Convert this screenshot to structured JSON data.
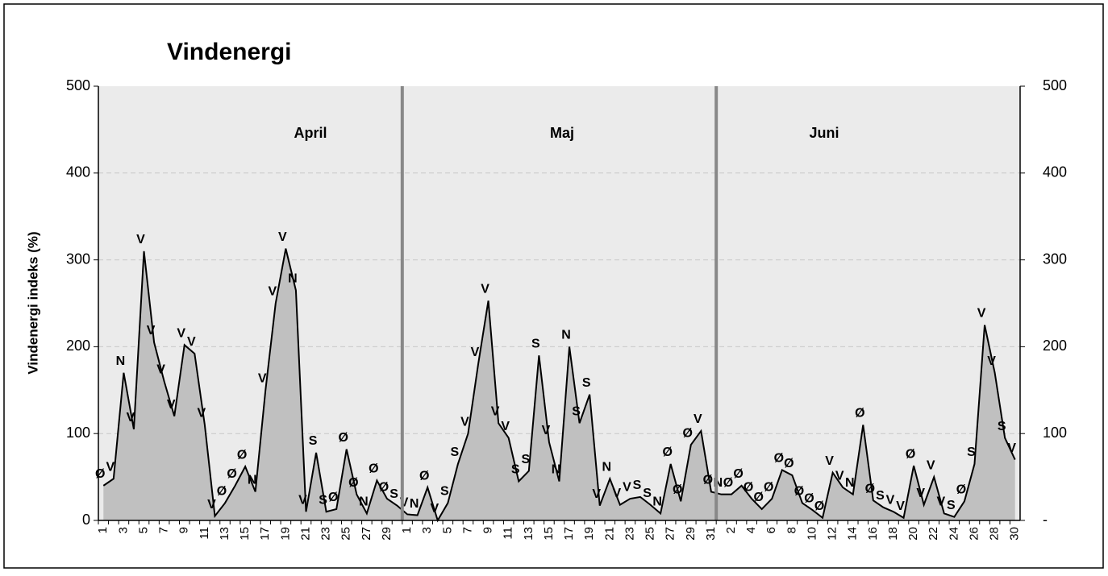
{
  "chart_data": {
    "type": "area",
    "title": "Vindenergi",
    "y_label": "Vindenergi indeks (%)",
    "months": [
      "April",
      "Maj",
      "Juni"
    ],
    "categories": [
      "1",
      null,
      "3",
      null,
      "5",
      null,
      "7",
      null,
      "9",
      null,
      "11",
      null,
      "13",
      null,
      "15",
      null,
      "17",
      null,
      "19",
      null,
      "21",
      null,
      "23",
      null,
      "25",
      null,
      "27",
      null,
      "29",
      null,
      "1",
      null,
      "3",
      null,
      "5",
      null,
      "7",
      null,
      "9",
      null,
      "11",
      null,
      "13",
      null,
      "15",
      null,
      "17",
      null,
      "19",
      null,
      "21",
      null,
      "23",
      null,
      "25",
      null,
      "27",
      null,
      "29",
      null,
      "31",
      null,
      "2",
      null,
      "4",
      null,
      "6",
      null,
      "8",
      null,
      "10",
      null,
      "12",
      null,
      "14",
      null,
      "16",
      null,
      "18",
      null,
      "20",
      null,
      "22",
      null,
      "24",
      null,
      "26",
      null,
      "28",
      null,
      "30"
    ],
    "series": [
      {
        "name": "Vindenergi",
        "color": "#c0c0c0",
        "values": [
          40,
          48,
          170,
          105,
          310,
          205,
          160,
          120,
          202,
          192,
          110,
          5,
          20,
          40,
          62,
          33,
          150,
          250,
          313,
          265,
          10,
          78,
          10,
          13,
          82,
          30,
          8,
          46,
          25,
          17,
          7,
          6,
          38,
          0,
          20,
          65,
          100,
          180,
          253,
          112,
          95,
          45,
          57,
          190,
          90,
          45,
          200,
          112,
          145,
          17,
          48,
          18,
          25,
          27,
          18,
          8,
          65,
          22,
          87,
          103,
          33,
          30,
          30,
          40,
          25,
          13,
          25,
          58,
          52,
          20,
          12,
          3,
          55,
          38,
          30,
          110,
          23,
          15,
          10,
          3,
          63,
          18,
          50,
          8,
          4,
          22,
          65,
          225,
          170,
          95,
          70
        ],
        "directions": [
          "Ø",
          "V",
          "N",
          "V",
          "V",
          "V",
          "V",
          "V",
          "V",
          "V",
          "V",
          "V",
          "Ø",
          "Ø",
          "Ø",
          "N",
          "V",
          "V",
          "V",
          "N",
          "V",
          "S",
          "S",
          "Ø",
          "Ø",
          "Ø",
          "N",
          "Ø",
          "Ø",
          "S",
          "V",
          "N",
          "Ø",
          "V",
          "S",
          "S",
          "V",
          "V",
          "V",
          "V",
          "V",
          "S",
          "S",
          "S",
          "V",
          "N",
          "N",
          "S",
          "S",
          "V",
          "N",
          "V",
          "V",
          "S",
          "S",
          "N",
          "Ø",
          "Ø",
          "Ø",
          "V",
          "Ø",
          "N",
          "Ø",
          "Ø",
          "Ø",
          "Ø",
          "Ø",
          "Ø",
          "Ø",
          "Ø",
          "Ø",
          "Ø",
          "V",
          "V",
          "N",
          "Ø",
          "Ø",
          "S",
          "V",
          "V",
          "Ø",
          "V",
          "V",
          "V",
          "S",
          "Ø",
          "S",
          "V",
          "V",
          "S",
          "V"
        ]
      }
    ],
    "ylim": [
      0,
      500
    ],
    "yticks": [
      0,
      100,
      200,
      300,
      400,
      500
    ],
    "y2lim": [
      0,
      500
    ],
    "y2ticks": [
      {
        "value": 0,
        "label": "-"
      },
      100,
      200,
      300,
      400,
      500
    ],
    "grid": true
  }
}
